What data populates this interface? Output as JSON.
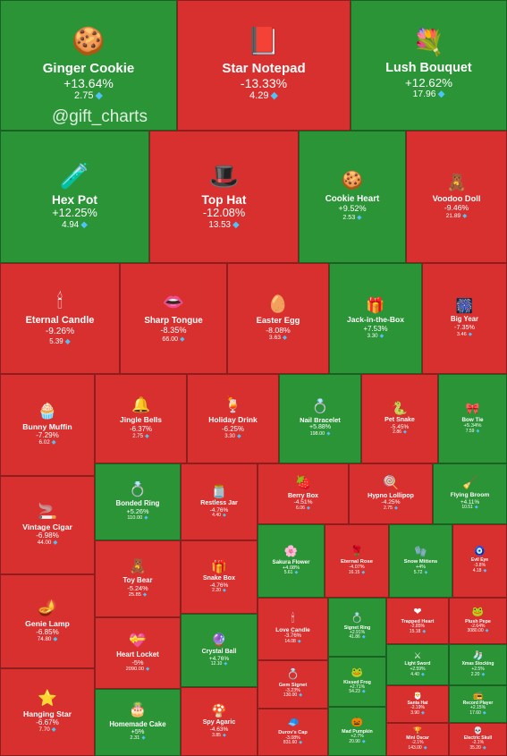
{
  "watermark": "@gift_charts",
  "colors": {
    "up": "#2a9436",
    "down": "#d8302f",
    "gem": "#4fc3f7"
  },
  "chart_data": {
    "type": "treemap",
    "items": [
      {
        "name": "Ginger Cookie",
        "change": "+13.64%",
        "price": "2.75",
        "icon": "🍪"
      },
      {
        "name": "Star Notepad",
        "change": "-13.33%",
        "price": "4.29",
        "icon": "📕"
      },
      {
        "name": "Lush Bouquet",
        "change": "+12.62%",
        "price": "17.96",
        "icon": "💐"
      },
      {
        "name": "Hex Pot",
        "change": "+12.25%",
        "price": "4.94",
        "icon": "🧪"
      },
      {
        "name": "Top Hat",
        "change": "-12.08%",
        "price": "13.53",
        "icon": "🎩"
      },
      {
        "name": "Cookie Heart",
        "change": "+9.52%",
        "price": "2.53",
        "icon": "🍪"
      },
      {
        "name": "Voodoo Doll",
        "change": "-9.46%",
        "price": "21.89",
        "icon": "🧸"
      },
      {
        "name": "Eternal Candle",
        "change": "-9.26%",
        "price": "5.39",
        "icon": "🕯"
      },
      {
        "name": "Sharp Tongue",
        "change": "-8.35%",
        "price": "66.00",
        "icon": "👄"
      },
      {
        "name": "Easter Egg",
        "change": "-8.08%",
        "price": "3.63",
        "icon": "🥚"
      },
      {
        "name": "Jack-in-the-Box",
        "change": "+7.53%",
        "price": "3.30",
        "icon": "🎁"
      },
      {
        "name": "Big Year",
        "change": "-7.35%",
        "price": "3.46",
        "icon": "🎆"
      },
      {
        "name": "Bunny Muffin",
        "change": "-7.29%",
        "price": "6.02",
        "icon": "🧁"
      },
      {
        "name": "Jingle Bells",
        "change": "-6.37%",
        "price": "2.75",
        "icon": "🔔"
      },
      {
        "name": "Holiday Drink",
        "change": "-6.25%",
        "price": "3.30",
        "icon": "🍹"
      },
      {
        "name": "Nail Bracelet",
        "change": "+5.88%",
        "price": "198.00",
        "icon": "💍"
      },
      {
        "name": "Pet Snake",
        "change": "-5.45%",
        "price": "2.86",
        "icon": "🐍"
      },
      {
        "name": "Bow Tie",
        "change": "+5.34%",
        "price": "7.59",
        "icon": "🎀"
      },
      {
        "name": "Vintage Cigar",
        "change": "-6.98%",
        "price": "44.00",
        "icon": "🚬"
      },
      {
        "name": "Bonded Ring",
        "change": "+5.26%",
        "price": "110.00",
        "icon": "💍"
      },
      {
        "name": "Restless Jar",
        "change": "-4.76%",
        "price": "4.40",
        "icon": "🫙"
      },
      {
        "name": "Berry Box",
        "change": "-4.51%",
        "price": "6.06",
        "icon": "🍓"
      },
      {
        "name": "Hypno Lollipop",
        "change": "-4.25%",
        "price": "2.75",
        "icon": "🍭"
      },
      {
        "name": "Flying Broom",
        "change": "+4.11%",
        "price": "10.51",
        "icon": "🧹"
      },
      {
        "name": "Genie Lamp",
        "change": "-6.85%",
        "price": "74.80",
        "icon": "🪔"
      },
      {
        "name": "Toy Bear",
        "change": "-5.24%",
        "price": "25.85",
        "icon": "🧸"
      },
      {
        "name": "Snake Box",
        "change": "-4.76%",
        "price": "2.20",
        "icon": "🎁"
      },
      {
        "name": "Sakura Flower",
        "change": "+4.08%",
        "price": "5.61",
        "icon": "🌸"
      },
      {
        "name": "Eternal Rose",
        "change": "-4.07%",
        "price": "16.15",
        "icon": "🌹"
      },
      {
        "name": "Snow Mittens",
        "change": "+4%",
        "price": "5.72",
        "icon": "🧤"
      },
      {
        "name": "Evil Eye",
        "change": "-3.8%",
        "price": "4.18",
        "icon": "🧿"
      },
      {
        "name": "Heart Locket",
        "change": "-5%",
        "price": "2090.00",
        "icon": "💝"
      },
      {
        "name": "Crystal Ball",
        "change": "+4.76%",
        "price": "12.10",
        "icon": "🔮"
      },
      {
        "name": "Love Candle",
        "change": "-3.76%",
        "price": "14.08",
        "icon": "🕯"
      },
      {
        "name": "Signet Ring",
        "change": "+2.91%",
        "price": "41.86",
        "icon": "💍"
      },
      {
        "name": "Trapped Heart",
        "change": "-2.85%",
        "price": "15.18",
        "icon": "❤"
      },
      {
        "name": "Plush Pepe",
        "change": "-2.64%",
        "price": "3080.00",
        "icon": "🐸"
      },
      {
        "name": "Gem Signet",
        "change": "-3.23%",
        "price": "130.00",
        "icon": "💍"
      },
      {
        "name": "Kissed Frog",
        "change": "+2.71%",
        "price": "54.23",
        "icon": "🐸"
      },
      {
        "name": "Light Sword",
        "change": "+2.59%",
        "price": "4.40",
        "icon": "⚔"
      },
      {
        "name": "Xmas Stocking",
        "change": "+2.5%",
        "price": "2.20",
        "icon": "🧦"
      },
      {
        "name": "Santa Hat",
        "change": "-2.19%",
        "price": "3.90",
        "icon": "🎅"
      },
      {
        "name": "Record Player",
        "change": "+2.15%",
        "price": "17.60",
        "icon": "📻"
      },
      {
        "name": "Hanging Star",
        "change": "-6.67%",
        "price": "7.70",
        "icon": "⭐"
      },
      {
        "name": "Homemade Cake",
        "change": "+5%",
        "price": "2.31",
        "icon": "🎂"
      },
      {
        "name": "Spy Agaric",
        "change": "-4.63%",
        "price": "3.85",
        "icon": "🍄"
      },
      {
        "name": "Durov's Cap",
        "change": "-3.08%",
        "price": "831.60",
        "icon": "🧢"
      },
      {
        "name": "Mad Pumpkin",
        "change": "+2.7%",
        "price": "20.90",
        "icon": "🎃"
      },
      {
        "name": "Mini Oscar",
        "change": "-2.1%",
        "price": "143.00",
        "icon": "🏆"
      },
      {
        "name": "Electric Skull",
        "change": "-2.1%",
        "price": "35.20",
        "icon": "💀"
      }
    ]
  }
}
